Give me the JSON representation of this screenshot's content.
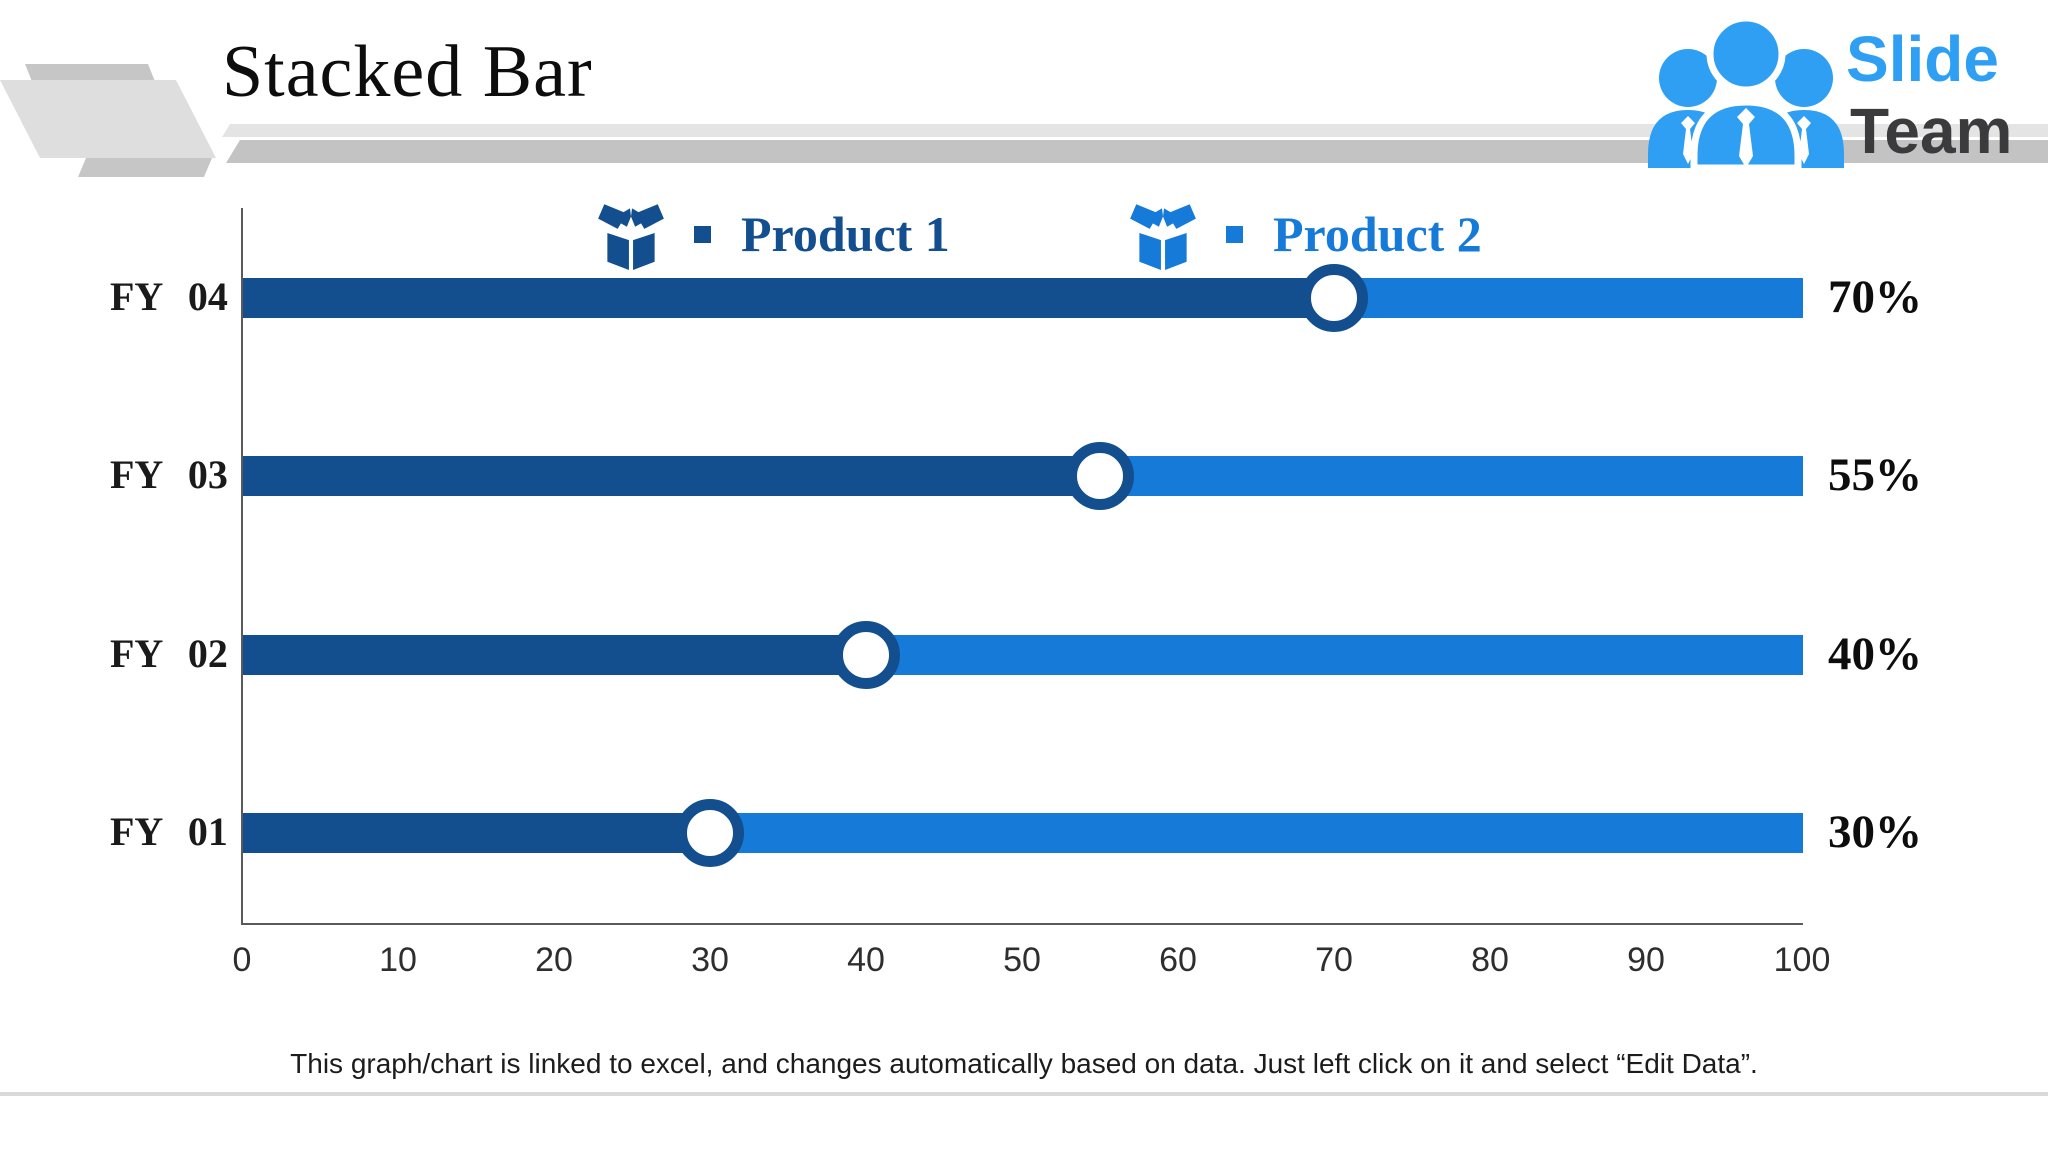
{
  "title": "Stacked Bar",
  "logo": {
    "slide": "Slide",
    "team": "Team"
  },
  "colors": {
    "product1": "#134F8E",
    "product2": "#157AD8",
    "logo_blue": "#2E9FF2",
    "logo_dark": "#3B3B3D",
    "axis": "#5A5A5A",
    "decor_light": "#DEDEDE",
    "decor_mid": "#C6C6C6"
  },
  "legend": [
    {
      "label": "Product 1",
      "color": "#134F8E",
      "icon": "open-box-icon"
    },
    {
      "label": "Product 2",
      "color": "#157AD8",
      "icon": "open-box-icon"
    }
  ],
  "chart_data": {
    "type": "bar",
    "orientation": "horizontal",
    "stacked": true,
    "categories": [
      "FY 04",
      "FY 03",
      "FY 02",
      "FY 01"
    ],
    "series": [
      {
        "name": "Product 1",
        "color": "#134F8E",
        "values": [
          70,
          55,
          40,
          30
        ]
      },
      {
        "name": "Product 2",
        "color": "#157AD8",
        "values": [
          30,
          45,
          60,
          70
        ]
      }
    ],
    "bar_labels": [
      "70%",
      "55%",
      "40%",
      "30%"
    ],
    "x_ticks": [
      0,
      10,
      20,
      30,
      40,
      50,
      60,
      70,
      80,
      90,
      100
    ],
    "xlim": [
      0,
      100
    ],
    "grid": false,
    "legend_position": "top",
    "marker": "white circle with dark-blue ring at stack boundary"
  },
  "footer": {
    "note": "This graph/chart is linked to excel, and changes automatically based on data. Just left click on it and select “Edit Data”."
  }
}
